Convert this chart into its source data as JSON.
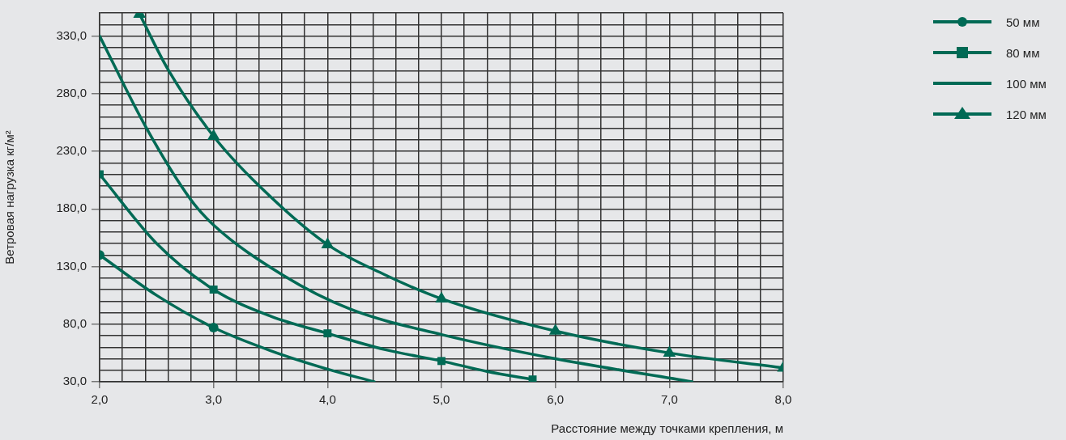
{
  "chart_data": {
    "type": "line",
    "xlabel": "Расстояние между точками крепления, м",
    "ylabel": "Ветровая нагрузка кг/м²",
    "xlim": [
      2,
      8
    ],
    "ylim": [
      30,
      350
    ],
    "xticks": [
      {
        "value": 2,
        "label": "2,0"
      },
      {
        "value": 2.2,
        "label": null
      },
      {
        "value": 2.4,
        "label": null
      },
      {
        "value": 2.6,
        "label": null
      },
      {
        "value": 2.8,
        "label": null
      },
      {
        "value": 3,
        "label": "3,0"
      },
      {
        "value": 3.2,
        "label": null
      },
      {
        "value": 3.4,
        "label": null
      },
      {
        "value": 3.6,
        "label": null
      },
      {
        "value": 3.8,
        "label": null
      },
      {
        "value": 4,
        "label": "4,0"
      },
      {
        "value": 4.2,
        "label": null
      },
      {
        "value": 4.4,
        "label": null
      },
      {
        "value": 4.6,
        "label": null
      },
      {
        "value": 4.8,
        "label": null
      },
      {
        "value": 5,
        "label": "5,0"
      },
      {
        "value": 5.2,
        "label": null
      },
      {
        "value": 5.4,
        "label": null
      },
      {
        "value": 5.6,
        "label": null
      },
      {
        "value": 5.8,
        "label": null
      },
      {
        "value": 6,
        "label": "6,0"
      },
      {
        "value": 6.2,
        "label": null
      },
      {
        "value": 6.4,
        "label": null
      },
      {
        "value": 6.6,
        "label": null
      },
      {
        "value": 6.8,
        "label": null
      },
      {
        "value": 7,
        "label": "7,0"
      },
      {
        "value": 7.2,
        "label": null
      },
      {
        "value": 7.4,
        "label": null
      },
      {
        "value": 7.6,
        "label": null
      },
      {
        "value": 7.8,
        "label": null
      },
      {
        "value": 8,
        "label": "8,0"
      }
    ],
    "yticks": [
      {
        "value": 30,
        "label": "30,0"
      },
      {
        "value": 40,
        "label": null
      },
      {
        "value": 50,
        "label": null
      },
      {
        "value": 60,
        "label": null
      },
      {
        "value": 70,
        "label": null
      },
      {
        "value": 80,
        "label": "80,0"
      },
      {
        "value": 90,
        "label": null
      },
      {
        "value": 100,
        "label": null
      },
      {
        "value": 110,
        "label": null
      },
      {
        "value": 120,
        "label": null
      },
      {
        "value": 130,
        "label": "130,0"
      },
      {
        "value": 140,
        "label": null
      },
      {
        "value": 150,
        "label": null
      },
      {
        "value": 160,
        "label": null
      },
      {
        "value": 170,
        "label": null
      },
      {
        "value": 180,
        "label": "180,0"
      },
      {
        "value": 190,
        "label": null
      },
      {
        "value": 200,
        "label": null
      },
      {
        "value": 210,
        "label": null
      },
      {
        "value": 220,
        "label": null
      },
      {
        "value": 230,
        "label": "230,0"
      },
      {
        "value": 240,
        "label": null
      },
      {
        "value": 250,
        "label": null
      },
      {
        "value": 260,
        "label": null
      },
      {
        "value": 270,
        "label": null
      },
      {
        "value": 280,
        "label": "280,0"
      },
      {
        "value": 290,
        "label": null
      },
      {
        "value": 300,
        "label": null
      },
      {
        "value": 310,
        "label": null
      },
      {
        "value": 320,
        "label": null
      },
      {
        "value": 330,
        "label": "330,0"
      },
      {
        "value": 340,
        "label": null
      },
      {
        "value": 350,
        "label": null
      }
    ],
    "grid": true,
    "legend": "top right",
    "series": [
      {
        "color": "#006a55",
        "marker": "none",
        "x": [
          2,
          2.5,
          3,
          3.5,
          4,
          4.41
        ],
        "values": [
          140,
          105,
          77,
          57,
          41,
          30
        ]
      },
      {
        "type": "scatter",
        "name": "50 мм",
        "color": "#006a55",
        "marker": "circle",
        "x": [
          2,
          3
        ],
        "values": [
          140,
          77
        ]
      },
      {
        "color": "#006a55",
        "marker": "none",
        "x": [
          2,
          2.5,
          3,
          3.5,
          4,
          4.5,
          5,
          5.4,
          5.8
        ],
        "values": [
          210,
          150,
          110,
          87,
          72,
          58,
          48,
          39,
          32
        ]
      },
      {
        "type": "scatter",
        "name": "80 мм",
        "color": "#006a55",
        "marker": "square",
        "x": [
          2,
          3,
          4,
          5,
          5.8
        ],
        "values": [
          210,
          110,
          72,
          48,
          32
        ]
      },
      {
        "name": "100 мм",
        "color": "#006a55",
        "marker": "none",
        "x": [
          2,
          2.4,
          2.8,
          3,
          3.6,
          4.2,
          5,
          6,
          7.2
        ],
        "values": [
          330,
          252,
          188,
          166,
          123,
          93,
          71,
          50,
          30
        ]
      },
      {
        "color": "#006a55",
        "marker": "none",
        "x": [
          2.35,
          2.6,
          3,
          3.4,
          4,
          4.5,
          5,
          6,
          7,
          8
        ],
        "values": [
          349,
          301,
          243,
          200,
          149,
          123,
          102,
          74,
          55,
          42
        ]
      },
      {
        "type": "scatter",
        "name": "120 мм",
        "color": "#006a55",
        "marker": "triangle",
        "x": [
          2.35,
          3,
          4,
          5,
          6,
          7,
          8
        ],
        "values": [
          349,
          243,
          149,
          102,
          74,
          55,
          42
        ]
      }
    ]
  }
}
